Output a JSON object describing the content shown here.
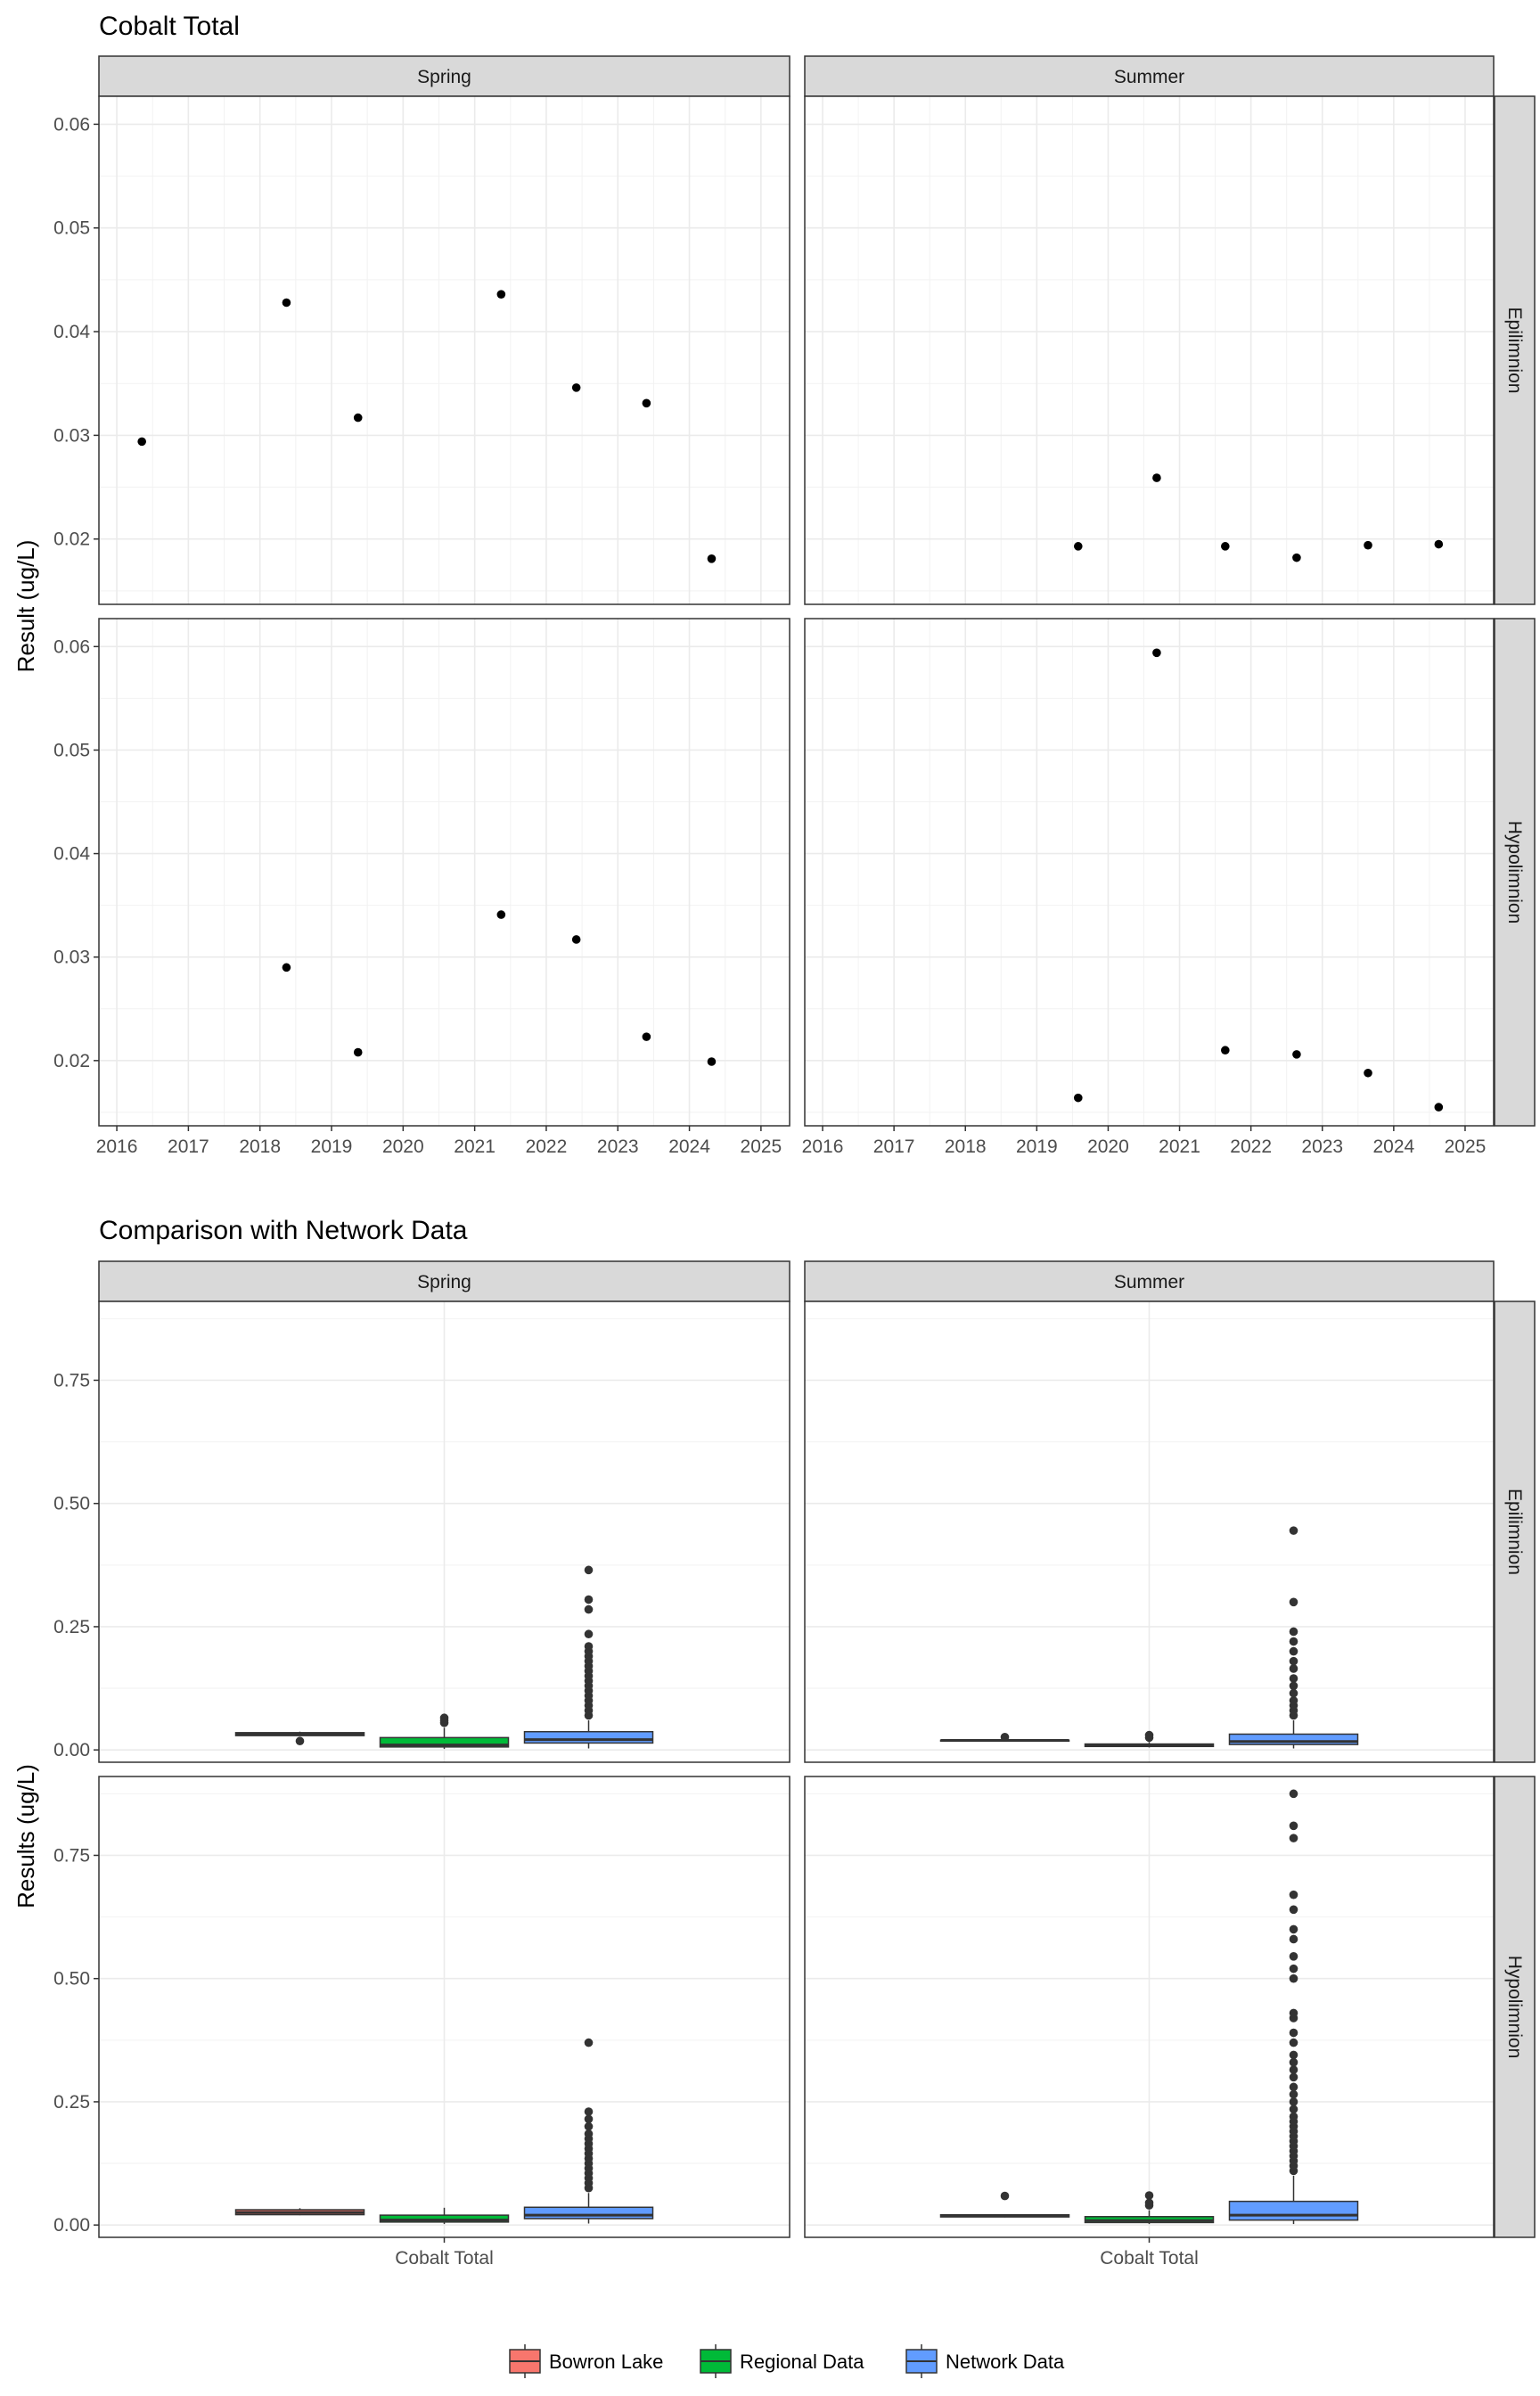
{
  "chart_data": [
    {
      "type": "scatter",
      "title": "Cobalt Total",
      "ylabel": "Result (ug/L)",
      "xlabel": "",
      "columns": [
        "Spring",
        "Summer"
      ],
      "rows": [
        "Epilimnion",
        "Hypolimnion"
      ],
      "xlim": [
        2015.75,
        2025.4
      ],
      "ylim": [
        0.0137,
        0.0627
      ],
      "x_ticks": [
        2016,
        2017,
        2018,
        2019,
        2020,
        2021,
        2022,
        2023,
        2024,
        2025
      ],
      "y_ticks": [
        0.02,
        0.03,
        0.04,
        0.05,
        0.06
      ],
      "y_tick_labels": [
        "0.02",
        "0.03",
        "0.04",
        "0.05",
        "0.06"
      ],
      "grid": true,
      "panels": [
        {
          "column": "Spring",
          "row": "Epilimnion",
          "points": [
            {
              "x": 2016.35,
              "y": 0.0294
            },
            {
              "x": 2018.37,
              "y": 0.0428
            },
            {
              "x": 2019.37,
              "y": 0.0317
            },
            {
              "x": 2021.37,
              "y": 0.0436
            },
            {
              "x": 2022.42,
              "y": 0.0346
            },
            {
              "x": 2023.4,
              "y": 0.0331
            },
            {
              "x": 2024.31,
              "y": 0.0181
            }
          ]
        },
        {
          "column": "Summer",
          "row": "Epilimnion",
          "points": [
            {
              "x": 2019.58,
              "y": 0.0193
            },
            {
              "x": 2020.68,
              "y": 0.0259
            },
            {
              "x": 2021.64,
              "y": 0.0193
            },
            {
              "x": 2022.64,
              "y": 0.0182
            },
            {
              "x": 2023.64,
              "y": 0.0194
            },
            {
              "x": 2024.63,
              "y": 0.0195
            }
          ]
        },
        {
          "column": "Spring",
          "row": "Hypolimnion",
          "points": [
            {
              "x": 2018.37,
              "y": 0.029
            },
            {
              "x": 2019.37,
              "y": 0.0208
            },
            {
              "x": 2021.37,
              "y": 0.0341
            },
            {
              "x": 2022.42,
              "y": 0.0317
            },
            {
              "x": 2023.4,
              "y": 0.0223
            },
            {
              "x": 2024.31,
              "y": 0.0199
            }
          ]
        },
        {
          "column": "Summer",
          "row": "Hypolimnion",
          "points": [
            {
              "x": 2019.58,
              "y": 0.0164
            },
            {
              "x": 2020.68,
              "y": 0.0594
            },
            {
              "x": 2021.64,
              "y": 0.021
            },
            {
              "x": 2022.64,
              "y": 0.0206
            },
            {
              "x": 2023.64,
              "y": 0.0188
            },
            {
              "x": 2024.63,
              "y": 0.0155
            }
          ]
        }
      ]
    },
    {
      "type": "box",
      "title": "Comparison with Network Data",
      "ylabel": "Results (ug/L)",
      "xlabel": "",
      "category": "Cobalt Total",
      "columns": [
        "Spring",
        "Summer"
      ],
      "rows": [
        "Epilimnion",
        "Hypolimnion"
      ],
      "ylim": [
        -0.025,
        0.91
      ],
      "y_ticks": [
        0.0,
        0.25,
        0.5,
        0.75
      ],
      "y_tick_labels": [
        "0.00",
        "0.25",
        "0.50",
        "0.75"
      ],
      "grid": true,
      "legend": {
        "position": "bottom",
        "items": [
          {
            "name": "Bowron Lake",
            "color": "#F8766D"
          },
          {
            "name": "Regional Data",
            "color": "#00BA38"
          },
          {
            "name": "Network Data",
            "color": "#619CFF"
          }
        ]
      },
      "panels": [
        {
          "column": "Spring",
          "row": "Epilimnion",
          "boxes": [
            {
              "series": "Bowron Lake",
              "q1": 0.029,
              "median": 0.032,
              "q3": 0.035,
              "lower": 0.029,
              "upper": 0.037,
              "outliers": [
                0.018
              ]
            },
            {
              "series": "Regional Data",
              "q1": 0.006,
              "median": 0.01,
              "q3": 0.025,
              "lower": 0.002,
              "upper": 0.045,
              "outliers": [
                0.055,
                0.06,
                0.065
              ]
            },
            {
              "series": "Network Data",
              "q1": 0.014,
              "median": 0.021,
              "q3": 0.037,
              "lower": 0.003,
              "upper": 0.06,
              "outliers": [
                0.07,
                0.08,
                0.09,
                0.1,
                0.11,
                0.12,
                0.13,
                0.14,
                0.15,
                0.16,
                0.17,
                0.18,
                0.19,
                0.2,
                0.21,
                0.235,
                0.285,
                0.305,
                0.365
              ]
            }
          ]
        },
        {
          "column": "Summer",
          "row": "Epilimnion",
          "boxes": [
            {
              "series": "Bowron Lake",
              "q1": 0.018,
              "median": 0.0193,
              "q3": 0.0196,
              "lower": 0.018,
              "upper": 0.0196,
              "outliers": [
                0.026
              ]
            },
            {
              "series": "Regional Data",
              "q1": 0.007,
              "median": 0.01,
              "q3": 0.012,
              "lower": 0.005,
              "upper": 0.016,
              "outliers": [
                0.025,
                0.03
              ]
            },
            {
              "series": "Network Data",
              "q1": 0.011,
              "median": 0.017,
              "q3": 0.032,
              "lower": 0.003,
              "upper": 0.06,
              "outliers": [
                0.07,
                0.08,
                0.09,
                0.1,
                0.115,
                0.13,
                0.145,
                0.165,
                0.18,
                0.2,
                0.22,
                0.24,
                0.3,
                0.445
              ]
            }
          ]
        },
        {
          "column": "Spring",
          "row": "Hypolimnion",
          "boxes": [
            {
              "series": "Bowron Lake",
              "q1": 0.021,
              "median": 0.0254,
              "q3": 0.031,
              "lower": 0.0199,
              "upper": 0.0341,
              "outliers": []
            },
            {
              "series": "Regional Data",
              "q1": 0.006,
              "median": 0.01,
              "q3": 0.02,
              "lower": 0.002,
              "upper": 0.035,
              "outliers": []
            },
            {
              "series": "Network Data",
              "q1": 0.013,
              "median": 0.02,
              "q3": 0.036,
              "lower": 0.003,
              "upper": 0.065,
              "outliers": [
                0.075,
                0.085,
                0.095,
                0.105,
                0.115,
                0.125,
                0.135,
                0.145,
                0.155,
                0.165,
                0.175,
                0.185,
                0.2,
                0.215,
                0.23,
                0.37
              ]
            }
          ]
        },
        {
          "column": "Summer",
          "row": "Hypolimnion",
          "boxes": [
            {
              "series": "Bowron Lake",
              "q1": 0.0164,
              "median": 0.019,
              "q3": 0.0208,
              "lower": 0.0155,
              "upper": 0.021,
              "outliers": [
                0.059
              ]
            },
            {
              "series": "Regional Data",
              "q1": 0.005,
              "median": 0.009,
              "q3": 0.017,
              "lower": 0.002,
              "upper": 0.03,
              "outliers": [
                0.04,
                0.045,
                0.06
              ]
            },
            {
              "series": "Network Data",
              "q1": 0.01,
              "median": 0.02,
              "q3": 0.048,
              "lower": 0.002,
              "upper": 0.1,
              "outliers": [
                0.11,
                0.12,
                0.13,
                0.14,
                0.15,
                0.16,
                0.17,
                0.18,
                0.19,
                0.2,
                0.21,
                0.22,
                0.235,
                0.25,
                0.265,
                0.28,
                0.3,
                0.315,
                0.33,
                0.345,
                0.37,
                0.39,
                0.42,
                0.43,
                0.5,
                0.52,
                0.545,
                0.58,
                0.6,
                0.64,
                0.67,
                0.785,
                0.81,
                0.875
              ]
            }
          ]
        }
      ]
    }
  ]
}
